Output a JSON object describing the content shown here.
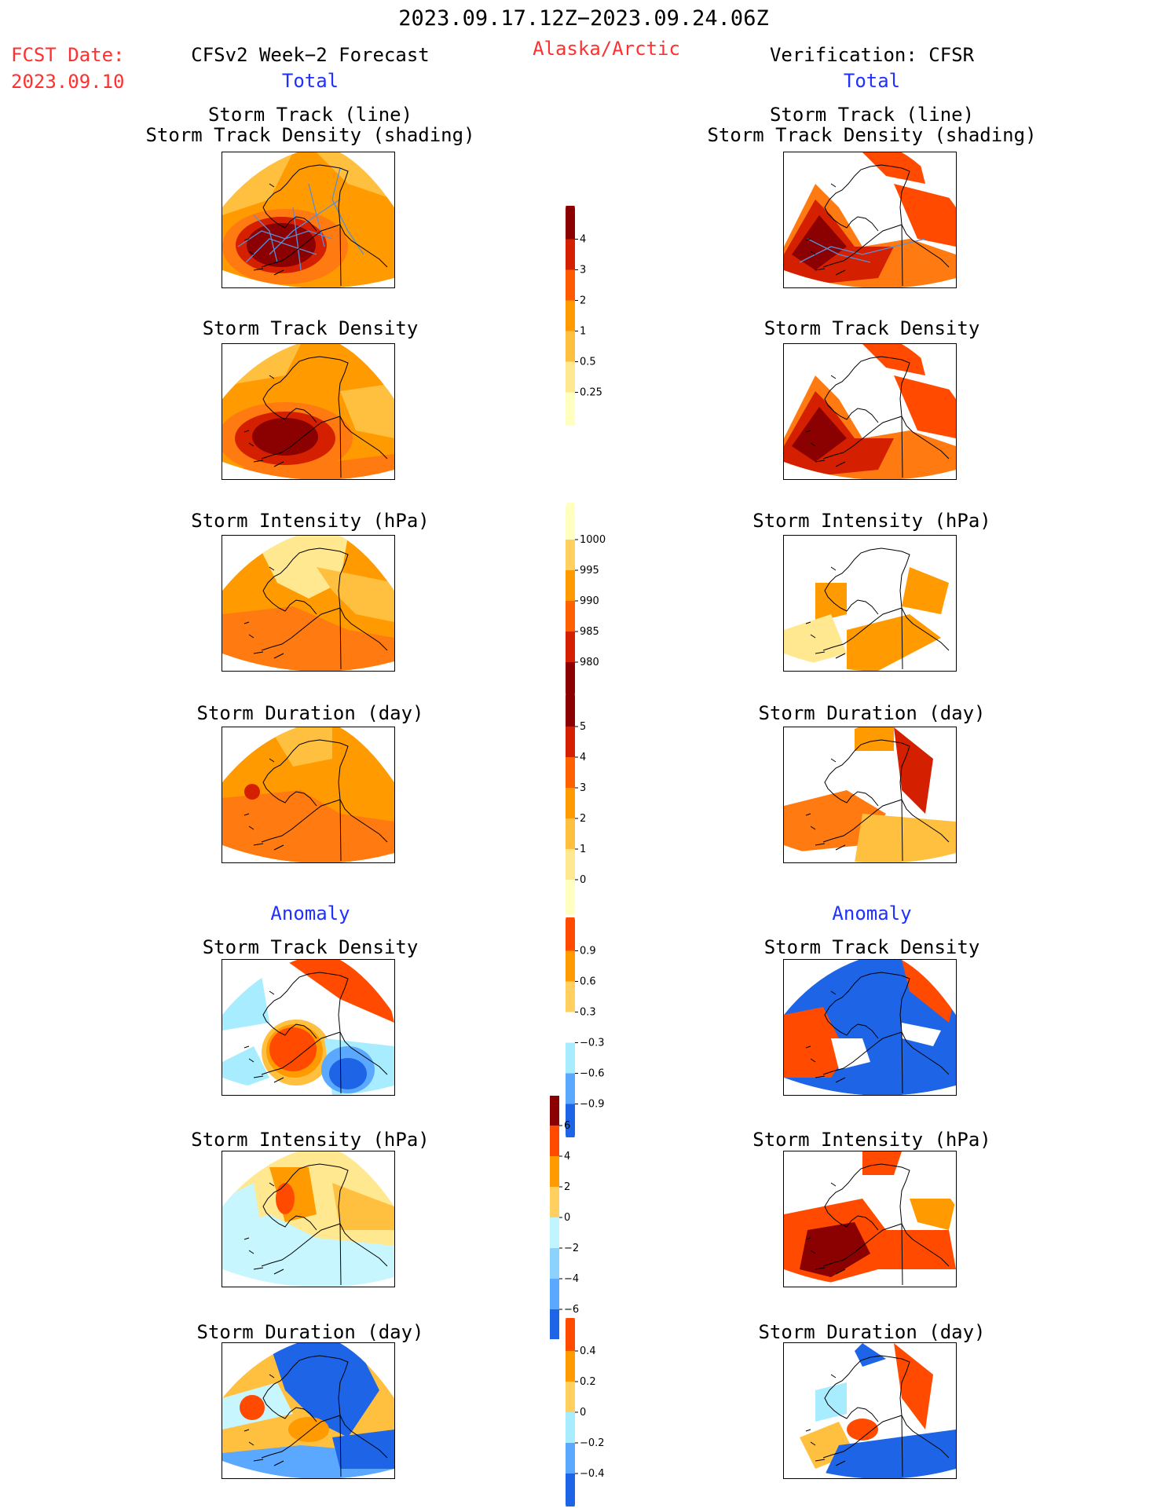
{
  "header": {
    "period": "2023.09.17.12Z−2023.09.24.06Z",
    "fcst_date_label": "FCST Date:",
    "fcst_date": "2023.09.10",
    "forecast_title": "CFSv2 Week−2 Forecast",
    "region": "Alaska/Arctic",
    "verification_title": "Verification: CFSR"
  },
  "sections": {
    "total_left": "Total",
    "total_right": "Total",
    "anomaly_left": "Anomaly",
    "anomaly_right": "Anomaly"
  },
  "panel_titles": {
    "track_line": "Storm Track (line)",
    "track_density_shading": "Storm Track Density (shading)",
    "track_density": "Storm Track Density",
    "intensity": "Storm Intensity (hPa)",
    "duration": "Storm Duration (day)"
  },
  "colorbars": {
    "density": {
      "labels": [
        "4",
        "3",
        "2",
        "1",
        "0.5",
        "0.25"
      ],
      "colors": [
        "#8b0000",
        "#d42000",
        "#ff5a00",
        "#ff9a00",
        "#ffc040",
        "#ffe890",
        "#ffffc0"
      ]
    },
    "intensity": {
      "labels": [
        "1000",
        "995",
        "990",
        "985",
        "980"
      ],
      "colors": [
        "#ffffc0",
        "#ffd060",
        "#ff9a00",
        "#ff6000",
        "#d42000",
        "#8b0000"
      ]
    },
    "duration": {
      "labels": [
        "5",
        "4",
        "3",
        "2",
        "1",
        "0"
      ],
      "colors": [
        "#8b0000",
        "#d42000",
        "#ff6000",
        "#ff9a00",
        "#ffc040",
        "#ffe890",
        "#ffffc0"
      ]
    },
    "density_anom": {
      "labels": [
        "0.9",
        "0.6",
        "0.3",
        "−0.3",
        "−0.6",
        "−0.9"
      ],
      "colors": [
        "#ff4a00",
        "#ff9a00",
        "#ffd060",
        "#ffffff",
        "#a8ecff",
        "#5aa8ff",
        "#1e64e6"
      ]
    },
    "intensity_anom": {
      "labels": [
        "6",
        "4",
        "2",
        "0",
        "−2",
        "−4",
        "−6"
      ],
      "colors": [
        "#8b0000",
        "#ff4a00",
        "#ff9a00",
        "#ffd060",
        "#c0f4ff",
        "#8cd2ff",
        "#5aa8ff",
        "#1e64e6"
      ]
    },
    "duration_anom": {
      "labels": [
        "0.4",
        "0.2",
        "0",
        "−0.2",
        "−0.4"
      ],
      "colors": [
        "#ff4a00",
        "#ff9a00",
        "#ffd060",
        "#a8ecff",
        "#5aa8ff",
        "#1e64e6"
      ]
    }
  }
}
